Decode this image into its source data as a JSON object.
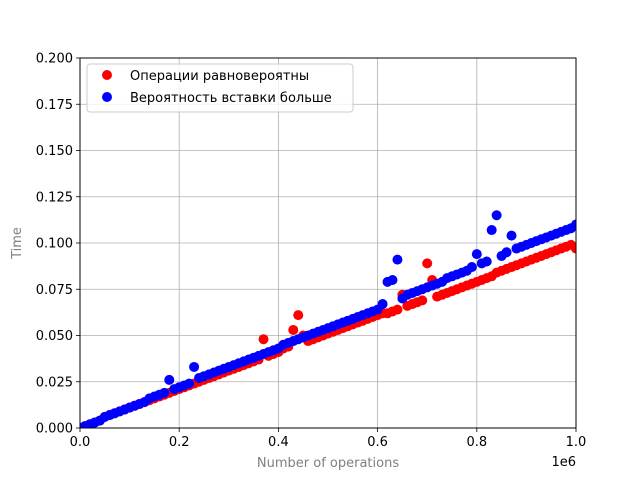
{
  "chart_data": {
    "type": "scatter",
    "xlabel": "Number of operations",
    "ylabel": "Time",
    "x_offset_label": "1e6",
    "xlim": [
      0,
      1000000
    ],
    "ylim": [
      0,
      0.2
    ],
    "x_ticks": [
      "0.0",
      "0.2",
      "0.4",
      "0.6",
      "0.8",
      "1.0"
    ],
    "y_ticks": [
      "0.000",
      "0.025",
      "0.050",
      "0.075",
      "0.100",
      "0.125",
      "0.150",
      "0.175",
      "0.200"
    ],
    "grid": true,
    "legend_position": "upper-left",
    "series": [
      {
        "name": "Операции равновероятны",
        "color": "#ff0000",
        "points": [
          [
            0,
            0.0
          ],
          [
            10000,
            0.001
          ],
          [
            20000,
            0.002
          ],
          [
            30000,
            0.003
          ],
          [
            40000,
            0.004
          ],
          [
            50000,
            0.006
          ],
          [
            60000,
            0.007
          ],
          [
            70000,
            0.008
          ],
          [
            80000,
            0.009
          ],
          [
            90000,
            0.01
          ],
          [
            100000,
            0.011
          ],
          [
            110000,
            0.012
          ],
          [
            120000,
            0.013
          ],
          [
            130000,
            0.014
          ],
          [
            140000,
            0.015
          ],
          [
            150000,
            0.016
          ],
          [
            160000,
            0.017
          ],
          [
            170000,
            0.018
          ],
          [
            180000,
            0.019
          ],
          [
            190000,
            0.02
          ],
          [
            200000,
            0.021
          ],
          [
            210000,
            0.022
          ],
          [
            220000,
            0.023
          ],
          [
            230000,
            0.024
          ],
          [
            240000,
            0.025
          ],
          [
            250000,
            0.026
          ],
          [
            260000,
            0.027
          ],
          [
            270000,
            0.028
          ],
          [
            280000,
            0.029
          ],
          [
            290000,
            0.03
          ],
          [
            300000,
            0.031
          ],
          [
            310000,
            0.032
          ],
          [
            320000,
            0.033
          ],
          [
            330000,
            0.034
          ],
          [
            340000,
            0.035
          ],
          [
            350000,
            0.036
          ],
          [
            360000,
            0.037
          ],
          [
            370000,
            0.048
          ],
          [
            380000,
            0.039
          ],
          [
            390000,
            0.04
          ],
          [
            400000,
            0.041
          ],
          [
            410000,
            0.043
          ],
          [
            420000,
            0.044
          ],
          [
            430000,
            0.053
          ],
          [
            440000,
            0.061
          ],
          [
            450000,
            0.05
          ],
          [
            460000,
            0.047
          ],
          [
            470000,
            0.048
          ],
          [
            480000,
            0.049
          ],
          [
            490000,
            0.05
          ],
          [
            500000,
            0.051
          ],
          [
            510000,
            0.052
          ],
          [
            520000,
            0.053
          ],
          [
            530000,
            0.054
          ],
          [
            540000,
            0.055
          ],
          [
            550000,
            0.056
          ],
          [
            560000,
            0.057
          ],
          [
            570000,
            0.058
          ],
          [
            580000,
            0.059
          ],
          [
            590000,
            0.06
          ],
          [
            600000,
            0.061
          ],
          [
            610000,
            0.062
          ],
          [
            620000,
            0.062
          ],
          [
            630000,
            0.063
          ],
          [
            640000,
            0.064
          ],
          [
            650000,
            0.072
          ],
          [
            660000,
            0.066
          ],
          [
            670000,
            0.067
          ],
          [
            680000,
            0.068
          ],
          [
            690000,
            0.069
          ],
          [
            700000,
            0.089
          ],
          [
            710000,
            0.08
          ],
          [
            720000,
            0.071
          ],
          [
            730000,
            0.072
          ],
          [
            740000,
            0.073
          ],
          [
            750000,
            0.074
          ],
          [
            760000,
            0.075
          ],
          [
            770000,
            0.076
          ],
          [
            780000,
            0.077
          ],
          [
            790000,
            0.078
          ],
          [
            800000,
            0.079
          ],
          [
            810000,
            0.08
          ],
          [
            820000,
            0.081
          ],
          [
            830000,
            0.082
          ],
          [
            840000,
            0.084
          ],
          [
            850000,
            0.085
          ],
          [
            860000,
            0.086
          ],
          [
            870000,
            0.087
          ],
          [
            880000,
            0.088
          ],
          [
            890000,
            0.089
          ],
          [
            900000,
            0.09
          ],
          [
            910000,
            0.091
          ],
          [
            920000,
            0.092
          ],
          [
            930000,
            0.093
          ],
          [
            940000,
            0.094
          ],
          [
            950000,
            0.095
          ],
          [
            960000,
            0.096
          ],
          [
            970000,
            0.097
          ],
          [
            980000,
            0.098
          ],
          [
            990000,
            0.099
          ],
          [
            1000000,
            0.097
          ]
        ]
      },
      {
        "name": "Вероятность вставки больше",
        "color": "#0000ff",
        "points": [
          [
            0,
            0.0
          ],
          [
            10000,
            0.001
          ],
          [
            20000,
            0.002
          ],
          [
            30000,
            0.003
          ],
          [
            40000,
            0.004
          ],
          [
            50000,
            0.006
          ],
          [
            60000,
            0.007
          ],
          [
            70000,
            0.008
          ],
          [
            80000,
            0.009
          ],
          [
            90000,
            0.01
          ],
          [
            100000,
            0.011
          ],
          [
            110000,
            0.012
          ],
          [
            120000,
            0.013
          ],
          [
            130000,
            0.014
          ],
          [
            140000,
            0.016
          ],
          [
            150000,
            0.017
          ],
          [
            160000,
            0.018
          ],
          [
            170000,
            0.019
          ],
          [
            180000,
            0.026
          ],
          [
            190000,
            0.021
          ],
          [
            200000,
            0.022
          ],
          [
            210000,
            0.023
          ],
          [
            220000,
            0.024
          ],
          [
            230000,
            0.033
          ],
          [
            240000,
            0.027
          ],
          [
            250000,
            0.028
          ],
          [
            260000,
            0.029
          ],
          [
            270000,
            0.03
          ],
          [
            280000,
            0.031
          ],
          [
            290000,
            0.032
          ],
          [
            300000,
            0.033
          ],
          [
            310000,
            0.034
          ],
          [
            320000,
            0.035
          ],
          [
            330000,
            0.036
          ],
          [
            340000,
            0.037
          ],
          [
            350000,
            0.038
          ],
          [
            360000,
            0.039
          ],
          [
            370000,
            0.04
          ],
          [
            380000,
            0.041
          ],
          [
            390000,
            0.042
          ],
          [
            400000,
            0.043
          ],
          [
            410000,
            0.045
          ],
          [
            420000,
            0.046
          ],
          [
            430000,
            0.047
          ],
          [
            440000,
            0.048
          ],
          [
            450000,
            0.049
          ],
          [
            460000,
            0.05
          ],
          [
            470000,
            0.051
          ],
          [
            480000,
            0.052
          ],
          [
            490000,
            0.053
          ],
          [
            500000,
            0.054
          ],
          [
            510000,
            0.055
          ],
          [
            520000,
            0.056
          ],
          [
            530000,
            0.057
          ],
          [
            540000,
            0.058
          ],
          [
            550000,
            0.059
          ],
          [
            560000,
            0.06
          ],
          [
            570000,
            0.061
          ],
          [
            580000,
            0.062
          ],
          [
            590000,
            0.063
          ],
          [
            600000,
            0.064
          ],
          [
            610000,
            0.067
          ],
          [
            620000,
            0.079
          ],
          [
            630000,
            0.08
          ],
          [
            640000,
            0.091
          ],
          [
            650000,
            0.07
          ],
          [
            660000,
            0.072
          ],
          [
            670000,
            0.073
          ],
          [
            680000,
            0.074
          ],
          [
            690000,
            0.075
          ],
          [
            700000,
            0.076
          ],
          [
            710000,
            0.077
          ],
          [
            720000,
            0.078
          ],
          [
            730000,
            0.079
          ],
          [
            740000,
            0.081
          ],
          [
            750000,
            0.082
          ],
          [
            760000,
            0.083
          ],
          [
            770000,
            0.084
          ],
          [
            780000,
            0.085
          ],
          [
            790000,
            0.087
          ],
          [
            800000,
            0.094
          ],
          [
            810000,
            0.089
          ],
          [
            820000,
            0.09
          ],
          [
            830000,
            0.107
          ],
          [
            840000,
            0.115
          ],
          [
            850000,
            0.093
          ],
          [
            860000,
            0.095
          ],
          [
            870000,
            0.104
          ],
          [
            880000,
            0.097
          ],
          [
            890000,
            0.098
          ],
          [
            900000,
            0.099
          ],
          [
            910000,
            0.1
          ],
          [
            920000,
            0.101
          ],
          [
            930000,
            0.102
          ],
          [
            940000,
            0.103
          ],
          [
            950000,
            0.104
          ],
          [
            960000,
            0.105
          ],
          [
            970000,
            0.106
          ],
          [
            980000,
            0.107
          ],
          [
            990000,
            0.108
          ],
          [
            1000000,
            0.11
          ]
        ]
      }
    ]
  }
}
